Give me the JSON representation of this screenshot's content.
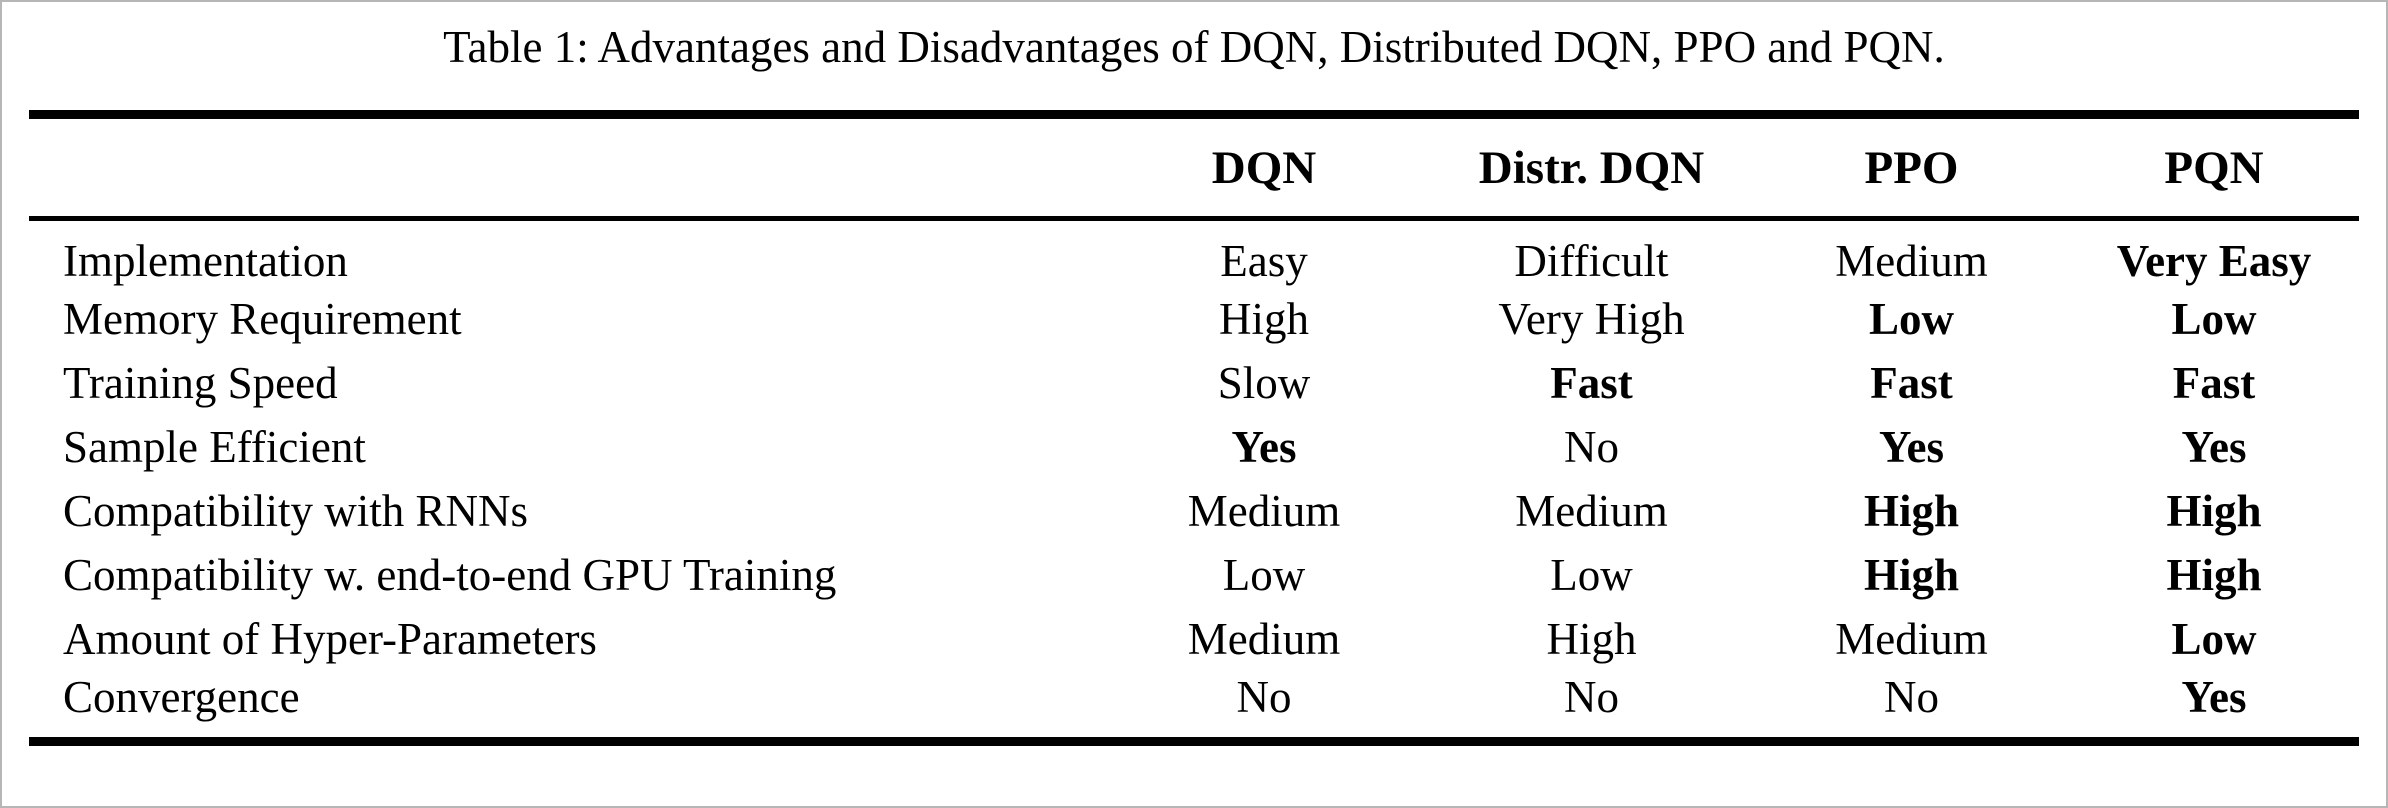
{
  "caption": "Table 1: Advantages and Disadvantages of DQN, Distributed DQN, PPO and PQN.",
  "colors": {
    "text": "#000000",
    "background": "#ffffff",
    "edge_border": "#b6b6b6",
    "rule": "#000000"
  },
  "table": {
    "columns": [
      "DQN",
      "Distr. DQN",
      "PPO",
      "PQN"
    ],
    "rows": [
      {
        "label": "Implementation",
        "cells": [
          {
            "text": "Easy",
            "bold": false
          },
          {
            "text": "Difficult",
            "bold": false
          },
          {
            "text": "Medium",
            "bold": false
          },
          {
            "text": "Very Easy",
            "bold": true
          }
        ]
      },
      {
        "label": "Memory Requirement",
        "cells": [
          {
            "text": "High",
            "bold": false
          },
          {
            "text": "Very High",
            "bold": false
          },
          {
            "text": "Low",
            "bold": true
          },
          {
            "text": "Low",
            "bold": true
          }
        ]
      },
      {
        "label": "Training Speed",
        "cells": [
          {
            "text": "Slow",
            "bold": false
          },
          {
            "text": "Fast",
            "bold": true
          },
          {
            "text": "Fast",
            "bold": true
          },
          {
            "text": "Fast",
            "bold": true
          }
        ]
      },
      {
        "label": "Sample Efficient",
        "cells": [
          {
            "text": "Yes",
            "bold": true
          },
          {
            "text": "No",
            "bold": false
          },
          {
            "text": "Yes",
            "bold": true
          },
          {
            "text": "Yes",
            "bold": true
          }
        ]
      },
      {
        "label": "Compatibility with RNNs",
        "cells": [
          {
            "text": "Medium",
            "bold": false
          },
          {
            "text": "Medium",
            "bold": false
          },
          {
            "text": "High",
            "bold": true
          },
          {
            "text": "High",
            "bold": true
          }
        ]
      },
      {
        "label": "Compatibility w. end-to-end GPU Training",
        "cells": [
          {
            "text": "Low",
            "bold": false
          },
          {
            "text": "Low",
            "bold": false
          },
          {
            "text": "High",
            "bold": true
          },
          {
            "text": "High",
            "bold": true
          }
        ]
      },
      {
        "label": "Amount of Hyper-Parameters",
        "cells": [
          {
            "text": "Medium",
            "bold": false
          },
          {
            "text": "High",
            "bold": false
          },
          {
            "text": "Medium",
            "bold": false
          },
          {
            "text": "Low",
            "bold": true
          }
        ]
      },
      {
        "label": "Convergence",
        "cells": [
          {
            "text": "No",
            "bold": false
          },
          {
            "text": "No",
            "bold": false
          },
          {
            "text": "No",
            "bold": false
          },
          {
            "text": "Yes",
            "bold": true
          }
        ]
      }
    ]
  }
}
